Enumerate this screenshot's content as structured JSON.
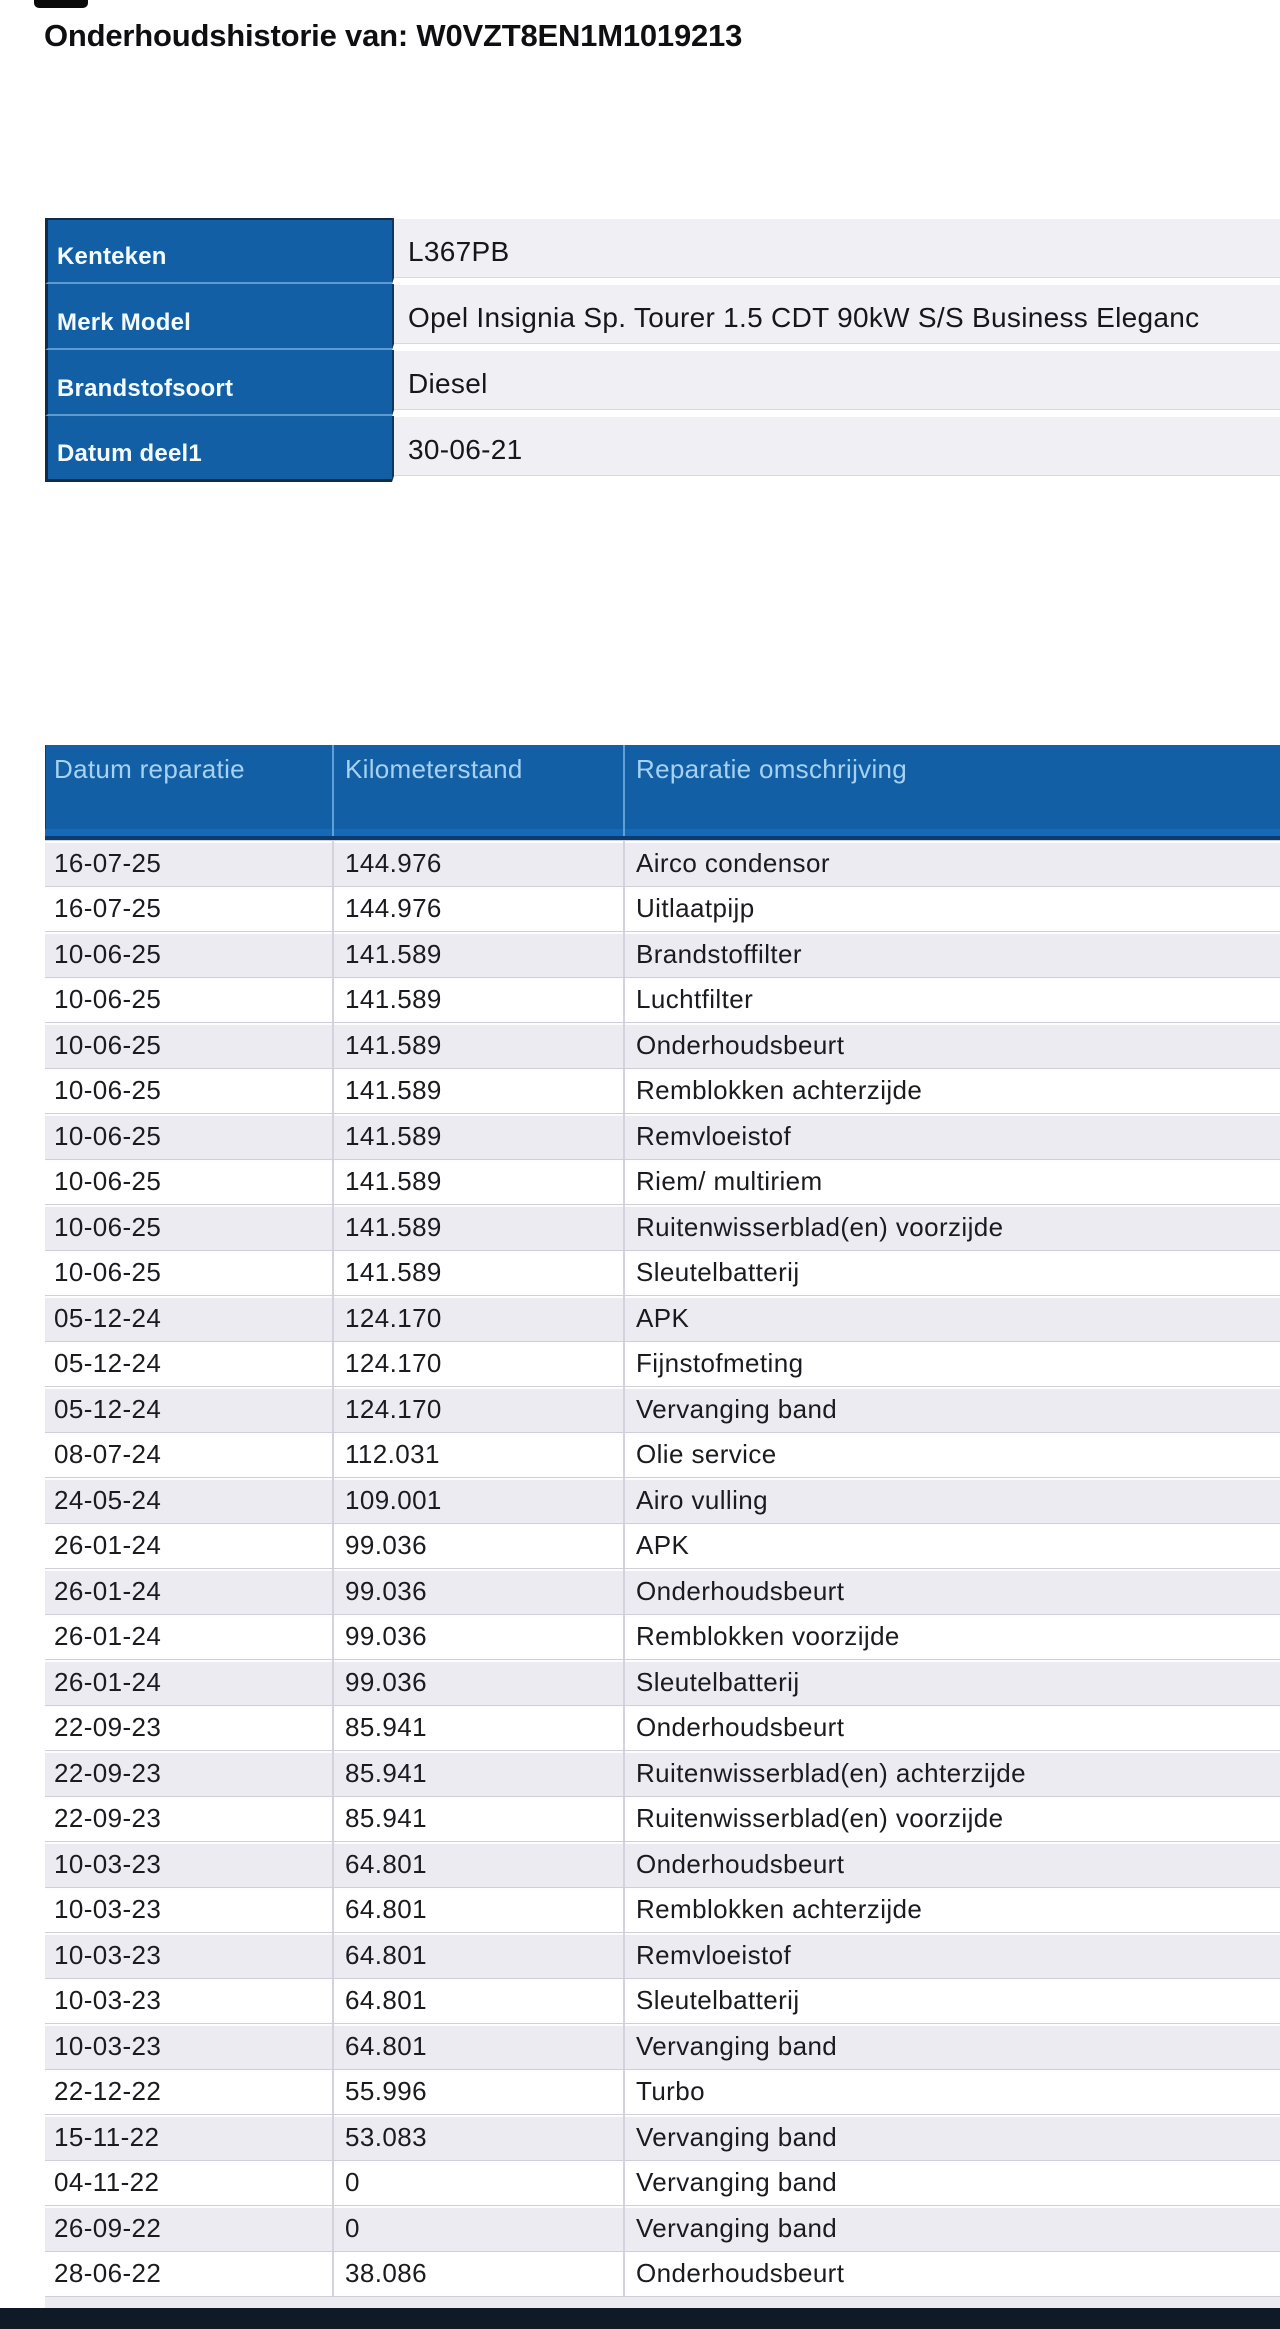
{
  "page": {
    "title": "Onderhoudshistorie van: W0VZT8EN1M1019213"
  },
  "vehicle_info": {
    "rows": [
      {
        "label": "Kenteken",
        "value": "L367PB"
      },
      {
        "label": "Merk Model",
        "value": "Opel Insignia Sp. Tourer 1.5 CDT 90kW S/S Business Eleganc"
      },
      {
        "label": "Brandstofsoort",
        "value": "Diesel"
      },
      {
        "label": "Datum deel1",
        "value": "30-06-21"
      }
    ]
  },
  "repairs": {
    "columns": [
      "Datum reparatie",
      "Kilometerstand",
      "Reparatie omschrijving"
    ],
    "rows": [
      {
        "date": "16-07-25",
        "km": "144.976",
        "description": "Airco condensor"
      },
      {
        "date": "16-07-25",
        "km": "144.976",
        "description": "Uitlaatpijp"
      },
      {
        "date": "10-06-25",
        "km": "141.589",
        "description": "Brandstoffilter"
      },
      {
        "date": "10-06-25",
        "km": "141.589",
        "description": "Luchtfilter"
      },
      {
        "date": "10-06-25",
        "km": "141.589",
        "description": "Onderhoudsbeurt"
      },
      {
        "date": "10-06-25",
        "km": "141.589",
        "description": "Remblokken achterzijde"
      },
      {
        "date": "10-06-25",
        "km": "141.589",
        "description": "Remvloeistof"
      },
      {
        "date": "10-06-25",
        "km": "141.589",
        "description": "Riem/ multiriem"
      },
      {
        "date": "10-06-25",
        "km": "141.589",
        "description": "Ruitenwisserblad(en) voorzijde"
      },
      {
        "date": "10-06-25",
        "km": "141.589",
        "description": "Sleutelbatterij"
      },
      {
        "date": "05-12-24",
        "km": "124.170",
        "description": "APK"
      },
      {
        "date": "05-12-24",
        "km": "124.170",
        "description": "Fijnstofmeting"
      },
      {
        "date": "05-12-24",
        "km": "124.170",
        "description": "Vervanging band"
      },
      {
        "date": "08-07-24",
        "km": "112.031",
        "description": "Olie service"
      },
      {
        "date": "24-05-24",
        "km": "109.001",
        "description": "Airo vulling"
      },
      {
        "date": "26-01-24",
        "km": "99.036",
        "description": "APK"
      },
      {
        "date": "26-01-24",
        "km": "99.036",
        "description": "Onderhoudsbeurt"
      },
      {
        "date": "26-01-24",
        "km": "99.036",
        "description": "Remblokken voorzijde"
      },
      {
        "date": "26-01-24",
        "km": "99.036",
        "description": "Sleutelbatterij"
      },
      {
        "date": "22-09-23",
        "km": "85.941",
        "description": "Onderhoudsbeurt"
      },
      {
        "date": "22-09-23",
        "km": "85.941",
        "description": "Ruitenwisserblad(en) achterzijde"
      },
      {
        "date": "22-09-23",
        "km": "85.941",
        "description": "Ruitenwisserblad(en) voorzijde"
      },
      {
        "date": "10-03-23",
        "km": "64.801",
        "description": "Onderhoudsbeurt"
      },
      {
        "date": "10-03-23",
        "km": "64.801",
        "description": "Remblokken achterzijde"
      },
      {
        "date": "10-03-23",
        "km": "64.801",
        "description": "Remvloeistof"
      },
      {
        "date": "10-03-23",
        "km": "64.801",
        "description": "Sleutelbatterij"
      },
      {
        "date": "10-03-23",
        "km": "64.801",
        "description": "Vervanging band"
      },
      {
        "date": "22-12-22",
        "km": "55.996",
        "description": "Turbo"
      },
      {
        "date": "15-11-22",
        "km": "53.083",
        "description": "Vervanging band"
      },
      {
        "date": "04-11-22",
        "km": "0",
        "description": "Vervanging band"
      },
      {
        "date": "26-09-22",
        "km": "0",
        "description": "Vervanging band"
      },
      {
        "date": "28-06-22",
        "km": "38.086",
        "description": "Onderhoudsbeurt"
      }
    ]
  },
  "colors": {
    "header_blue": "#125fa6",
    "header_text": "#a6d2f2",
    "row_alt_gray": "#ebebf1",
    "row_white": "#ffffff",
    "bottom_bar": "#0e1b27",
    "info_value_bg": "#efeff4"
  }
}
